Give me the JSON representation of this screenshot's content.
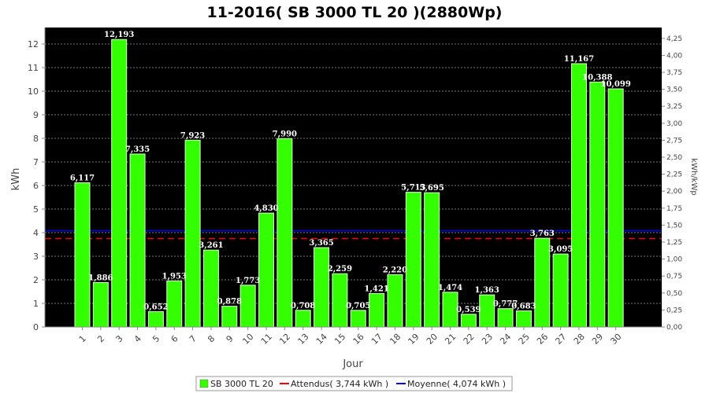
{
  "chart_data": {
    "type": "bar",
    "title": "11-2016( SB 3000 TL 20 )(2880Wp)",
    "xlabel": "Jour",
    "ylabel": "kWh",
    "y2label": "kWh/kWp",
    "ylim": [
      0,
      12.7
    ],
    "yticks": [
      "0",
      "1",
      "2",
      "3",
      "4",
      "5",
      "6",
      "7",
      "8",
      "9",
      "10",
      "11",
      "12"
    ],
    "y2ticks": [
      "0,00",
      "0,25",
      "0,50",
      "0,75",
      "1,00",
      "1,25",
      "1,50",
      "1,75",
      "2,00",
      "2,25",
      "2,50",
      "2,75",
      "3,00",
      "3,25",
      "3,50",
      "3,75",
      "4,00",
      "4,25"
    ],
    "categories": [
      "1",
      "2",
      "3",
      "4",
      "5",
      "6",
      "7",
      "8",
      "9",
      "10",
      "11",
      "12",
      "13",
      "14",
      "15",
      "16",
      "17",
      "18",
      "19",
      "20",
      "21",
      "22",
      "23",
      "24",
      "25",
      "26",
      "27",
      "28",
      "29",
      "30"
    ],
    "series": [
      {
        "name": "SB 3000 TL 20",
        "color": "#33ff00",
        "values": [
          6.117,
          1.886,
          12.193,
          7.335,
          0.652,
          1.953,
          7.923,
          3.261,
          0.878,
          1.773,
          4.83,
          7.99,
          0.708,
          3.365,
          2.259,
          0.705,
          1.421,
          2.22,
          5.713,
          5.695,
          1.474,
          0.539,
          1.363,
          0.777,
          0.683,
          3.763,
          3.095,
          11.167,
          10.388,
          10.099
        ],
        "labels": [
          "6,117",
          "1,886",
          "12,193",
          "7,335",
          "0,652",
          "1,953",
          "7,923",
          "3,261",
          "0,878",
          "1,773",
          "4,830",
          "7,990",
          "0,708",
          "3,365",
          "2,259",
          "0,705",
          "1,421",
          "2,220",
          "5,713",
          "5,695",
          "1,474",
          "0,539",
          "1,363",
          "0,777",
          "0,683",
          "3,763",
          "3,095",
          "11,167",
          "10,388",
          "10,099"
        ]
      }
    ],
    "reference_lines": [
      {
        "name": "Attendus( 3,744 kWh )",
        "value": 3.744,
        "color": "#ff0000",
        "style": "dashed"
      },
      {
        "name": "Moyenne( 4,074 kWh )",
        "value": 4.074,
        "color": "#0000ff",
        "style": "solid"
      }
    ],
    "grid": true,
    "legend_position": "bottom",
    "background": "#000000"
  }
}
